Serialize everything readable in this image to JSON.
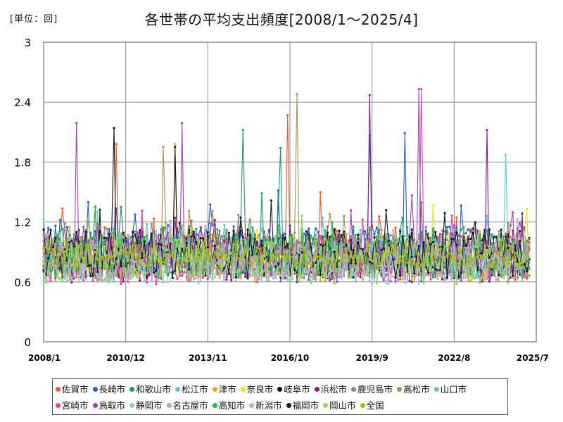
{
  "unit_label": "[単位：回]",
  "chart_data": {
    "type": "line",
    "title": "各世帯の平均支出頻度[2008/1～2025/4]",
    "xlabel": "",
    "ylabel": "",
    "ylim": [
      0,
      3
    ],
    "y_ticks": [
      "0",
      "0.6",
      "1.2",
      "1.8",
      "2.4",
      "3"
    ],
    "x_range": [
      "2008-01",
      "2025-07"
    ],
    "x_ticks": [
      "2008/1",
      "2010/12",
      "2013/11",
      "2016/10",
      "2019/9",
      "2022/8",
      "2025/7"
    ],
    "grid": true,
    "legend_position": "bottom",
    "series": [
      {
        "name": "佐賀市",
        "color": "#f15a22",
        "approx_values": {
          "mean": 0.9,
          "spread": 0.25
        },
        "peaks": [
          {
            "x": "2016-09",
            "y": 2.27
          },
          {
            "x": "2010-08",
            "y": 1.98
          }
        ]
      },
      {
        "name": "長崎市",
        "color": "#1f5fe0",
        "approx_values": {
          "mean": 0.92,
          "spread": 0.25
        },
        "peaks": [
          {
            "x": "2019-08",
            "y": 2.07
          },
          {
            "x": "2020-11",
            "y": 2.09
          }
        ]
      },
      {
        "name": "和歌山市",
        "color": "#1a9a6a",
        "approx_values": {
          "mean": 0.9,
          "spread": 0.25
        },
        "peaks": [
          {
            "x": "2015-02",
            "y": 2.12
          },
          {
            "x": "2016-06",
            "y": 1.94
          }
        ]
      },
      {
        "name": "松江市",
        "color": "#5bc6f0",
        "approx_values": {
          "mean": 0.85,
          "spread": 0.22
        },
        "peaks": [
          {
            "x": "2024-06",
            "y": 1.87
          }
        ]
      },
      {
        "name": "津市",
        "color": "#f2a31b",
        "approx_values": {
          "mean": 0.82,
          "spread": 0.22
        },
        "peaks": [
          {
            "x": "2012-09",
            "y": 1.98
          }
        ]
      },
      {
        "name": "奈良市",
        "color": "#f5e61a",
        "approx_values": {
          "mean": 0.85,
          "spread": 0.22
        },
        "peaks": [
          {
            "x": "2025-03",
            "y": 1.33
          }
        ]
      },
      {
        "name": "岐阜市",
        "color": "#111111",
        "approx_values": {
          "mean": 0.88,
          "spread": 0.25
        },
        "peaks": [
          {
            "x": "2010-07",
            "y": 2.14
          },
          {
            "x": "2012-09",
            "y": 1.95
          }
        ]
      },
      {
        "name": "浜松市",
        "color": "#8a1a8a",
        "approx_values": {
          "mean": 0.82,
          "spread": 0.23
        },
        "peaks": [
          {
            "x": "2019-08",
            "y": 2.47
          },
          {
            "x": "2023-10",
            "y": 2.12
          }
        ]
      },
      {
        "name": "鹿児島市",
        "color": "#7d8c96",
        "approx_values": {
          "mean": 0.85,
          "spread": 0.22
        },
        "peaks": []
      },
      {
        "name": "高松市",
        "color": "#a39350",
        "approx_values": {
          "mean": 0.88,
          "spread": 0.24
        },
        "peaks": [
          {
            "x": "2017-01",
            "y": 2.48
          },
          {
            "x": "2012-04",
            "y": 1.95
          }
        ]
      },
      {
        "name": "山口市",
        "color": "#66cc99",
        "approx_values": {
          "mean": 0.85,
          "spread": 0.22
        },
        "peaks": []
      },
      {
        "name": "宮崎市",
        "color": "#e8449a",
        "approx_values": {
          "mean": 0.8,
          "spread": 0.22
        },
        "peaks": [
          {
            "x": "2021-06",
            "y": 2.53
          }
        ]
      },
      {
        "name": "鳥取市",
        "color": "#a640c8",
        "approx_values": {
          "mean": 0.85,
          "spread": 0.25
        },
        "peaks": [
          {
            "x": "2009-03",
            "y": 2.19
          },
          {
            "x": "2012-12",
            "y": 2.19
          },
          {
            "x": "2021-05",
            "y": 2.53
          }
        ]
      },
      {
        "name": "静岡市",
        "color": "#9cc4e8",
        "approx_values": {
          "mean": 0.78,
          "spread": 0.2
        },
        "peaks": []
      },
      {
        "name": "名古屋市",
        "color": "#a8b59c",
        "approx_values": {
          "mean": 0.8,
          "spread": 0.2
        },
        "peaks": []
      },
      {
        "name": "高知市",
        "color": "#22bb33",
        "approx_values": {
          "mean": 0.85,
          "spread": 0.22
        },
        "peaks": []
      },
      {
        "name": "新潟市",
        "color": "#c3a8e0",
        "approx_values": {
          "mean": 0.8,
          "spread": 0.2
        },
        "peaks": []
      },
      {
        "name": "福岡市",
        "color": "#0c1a40",
        "approx_values": {
          "mean": 0.88,
          "spread": 0.24
        },
        "peaks": []
      },
      {
        "name": "岡山市",
        "color": "#88dd55",
        "approx_values": {
          "mean": 0.8,
          "spread": 0.22
        },
        "peaks": []
      },
      {
        "name": "全国",
        "color": "#b8b800",
        "approx_values": {
          "mean": 0.85,
          "spread": 0.1
        },
        "peaks": []
      }
    ]
  }
}
